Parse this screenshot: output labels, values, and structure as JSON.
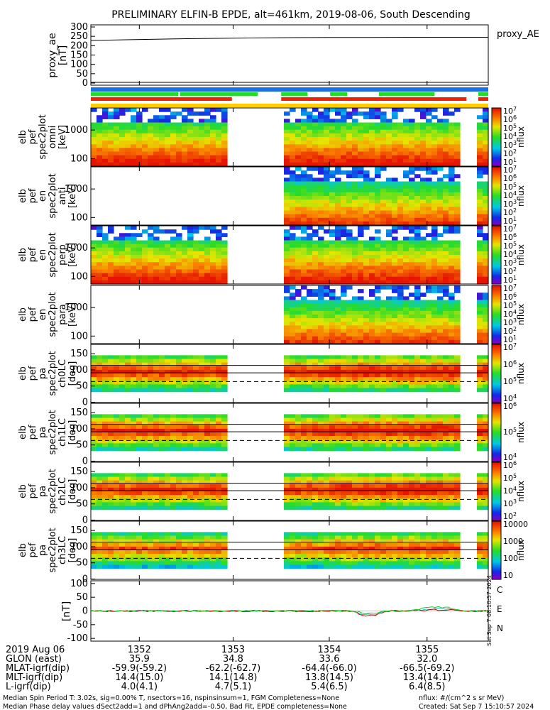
{
  "title": "PRELIMINARY ELFIN-B EPDE, alt=461km, 2019-08-06, South Descending",
  "colors": {
    "bar_blue": "#1a6fe6",
    "bar_green": "#22dd22",
    "bar_red": "#ee2200",
    "bar_yellow": "#ffcc00",
    "B_c": "#00cccc",
    "B_e": "#dd0000",
    "B_n": "#22cc22"
  },
  "icons": [
    "colorbar-rainbow"
  ],
  "proxy_ae": {
    "ylabel": "proxy_ae\n[nT]",
    "yticks": [
      "300",
      "250",
      "200",
      "150",
      "100",
      "50",
      "0"
    ],
    "legend": "proxy_AE",
    "values": [
      228,
      232,
      236,
      239,
      241,
      243,
      244,
      244,
      245,
      245,
      245
    ]
  },
  "panels": [
    {
      "ylabel": "elb\npef\nspec2plot\nomni\n[keV]",
      "yticks": [
        "1000",
        "100"
      ],
      "cb_ticks": [
        "10^7",
        "10^6",
        "10^5",
        "10^4",
        "10^3",
        "10^2",
        "10^1"
      ],
      "cb_label": "nflux"
    },
    {
      "ylabel": "elb\npef\nen\nspec2plot\nanti\n[keV]",
      "yticks": [
        "1000",
        "100"
      ],
      "cb_ticks": [
        "10^7",
        "10^6",
        "10^5",
        "10^4",
        "10^3",
        "10^2",
        "10^1"
      ],
      "cb_label": "nflux"
    },
    {
      "ylabel": "elb\npef\nen\nspec2plot\nperp\n[keV]",
      "yticks": [
        "1000",
        "100"
      ],
      "cb_ticks": [
        "10^7",
        "10^6",
        "10^5",
        "10^4",
        "10^3",
        "10^2",
        "10^1"
      ],
      "cb_label": "nflux"
    },
    {
      "ylabel": "elb\npef\nen\nspec2plot\npara\n[keV]",
      "yticks": [
        "1000",
        "100"
      ],
      "cb_ticks": [
        "10^7",
        "10^6",
        "10^5",
        "10^4",
        "10^3",
        "10^2",
        "10^1"
      ],
      "cb_label": "nflux"
    },
    {
      "ylabel": "elb\npef\npa\nspec2plot\nch0LC\n[deg]",
      "yticks": [
        "150",
        "100",
        "50",
        "0"
      ],
      "cb_ticks": [
        "10^7",
        "10^6",
        "10^5",
        "10^4"
      ],
      "cb_label": "nflux"
    },
    {
      "ylabel": "elb\npef\npa\nspec2plot\nch1LC\n[deg]",
      "yticks": [
        "150",
        "100",
        "50",
        "0"
      ],
      "cb_ticks": [
        "10^6",
        "10^5",
        "10^4"
      ],
      "cb_label": "nflux"
    },
    {
      "ylabel": "elb\npef\npa\nspec2plot\nch2LC\n[deg]",
      "yticks": [
        "150",
        "100",
        "50",
        "0"
      ],
      "cb_ticks": [
        "10^6",
        "10^5",
        "10^4",
        "10^3",
        "10^2"
      ],
      "cb_label": "nflux"
    },
    {
      "ylabel": "elb\npef\npa\nspec2plot\nch3LC\n[deg]",
      "yticks": [
        "150",
        "100",
        "50",
        "0"
      ],
      "cb_ticks": [
        "10000",
        "1000",
        "100",
        "10"
      ],
      "cb_label": "nflux"
    }
  ],
  "bfield": {
    "ylabel": "[nT]",
    "yticks": [
      "100",
      "50",
      "0",
      "-50",
      "-100"
    ],
    "legend": [
      "C",
      "E",
      "N"
    ],
    "side_text": "Sat Sep  7 08:10:57 2024"
  },
  "footer": {
    "rows": [
      {
        "label": "2019 Aug 06",
        "values": [
          "1352",
          "1353",
          "1354",
          "1355"
        ]
      },
      {
        "label": "GLON (east)",
        "values": [
          "35.9",
          "34.8",
          "33.6",
          "32.0"
        ]
      },
      {
        "label": "MLAT-igrf(dip)",
        "values": [
          "-59.9(-59.2)",
          "-62.2(-62.7)",
          "-64.4(-66.0)",
          "-66.5(-69.2)"
        ]
      },
      {
        "label": "MLT-igrf(dip)",
        "values": [
          "14.4(15.0)",
          "14.1(14.8)",
          "13.8(14.5)",
          "13.4(14.1)"
        ]
      },
      {
        "label": "L-igrf(dip)",
        "values": [
          "4.0(4.1)",
          "4.7(5.1)",
          "5.4(6.5)",
          "6.4(8.5)"
        ]
      }
    ],
    "note1": "Median Spin Period T: 3.02s, sig=0.00% T, nsectors=16, nspinsinsum=1, FGM Completeness=None",
    "note2": "Median Phase delay values dSect2add=1 and dPhAng2add=-0.50, Bad Fit, EPDE completeness=None",
    "units": "nflux: #/(cm^2 s sr MeV)",
    "created": "Created: Sat Sep  7 15:10:57 2024"
  },
  "chart_data": {
    "type": "heatmap",
    "title": "PRELIMINARY ELFIN-B EPDE, alt=461km, 2019-08-06, South Descending",
    "xlabel": "2019 Aug 06",
    "x_ticks": [
      "1352",
      "1353",
      "1354",
      "1355"
    ],
    "series": [
      {
        "name": "proxy_AE",
        "type": "line",
        "ylim": [
          0,
          300
        ],
        "values": [
          228,
          232,
          236,
          239,
          241,
          243,
          244,
          244,
          245,
          245,
          245
        ]
      }
    ],
    "energy_ylim_keV": [
      60,
      4000
    ],
    "pitch_angle_ylim_deg": [
      0,
      180
    ],
    "bfield_ylim_nT": [
      -100,
      100
    ]
  }
}
